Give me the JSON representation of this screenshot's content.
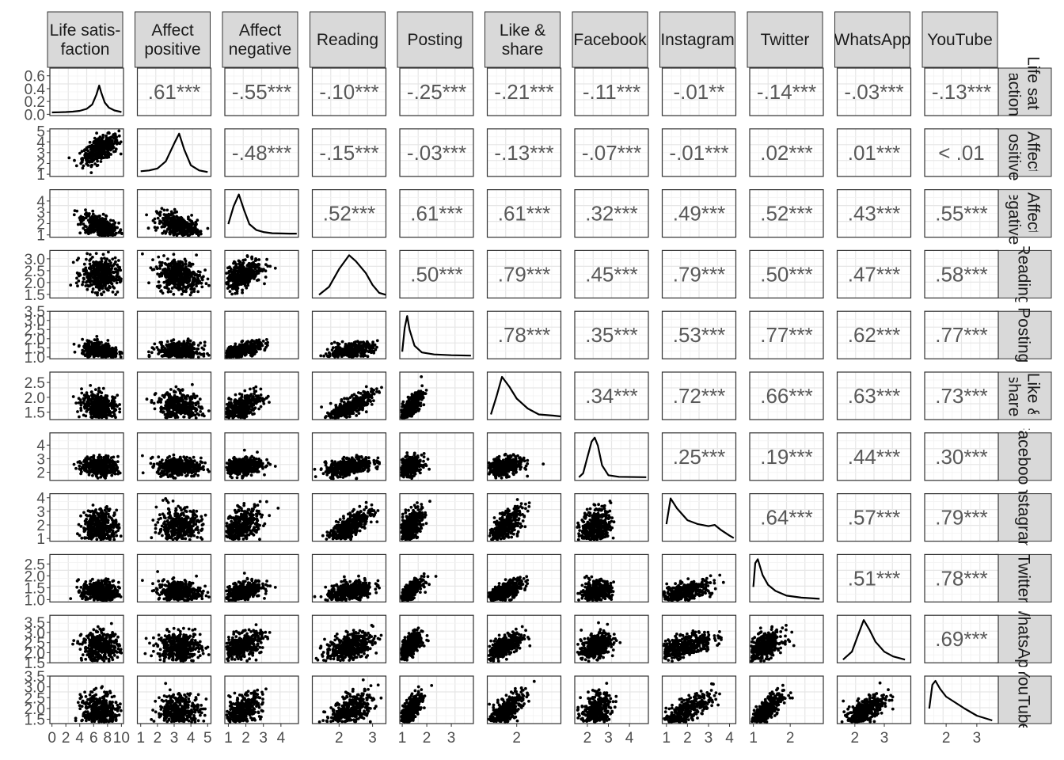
{
  "chart_data": {
    "type": "scatter-matrix",
    "variables": [
      {
        "top": [
          "Life satis-",
          "faction"
        ],
        "right": [
          "Life satis-",
          "faction"
        ]
      },
      {
        "top": [
          "Affect",
          "positive"
        ],
        "right": [
          "Affect",
          "positive"
        ]
      },
      {
        "top": [
          "Affect",
          "negative"
        ],
        "right": [
          "Affect",
          "negative"
        ]
      },
      {
        "top": [
          "Reading"
        ],
        "right": [
          "Reading"
        ]
      },
      {
        "top": [
          "Posting"
        ],
        "right": [
          "Posting"
        ]
      },
      {
        "top": [
          "Like &",
          "share"
        ],
        "right": [
          "Like &",
          "share"
        ]
      },
      {
        "top": [
          "Facebook"
        ],
        "right": [
          "Facebook"
        ]
      },
      {
        "top": [
          "Instagram"
        ],
        "right": [
          "Instagram"
        ]
      },
      {
        "top": [
          "Twitter"
        ],
        "right": [
          "Twitter"
        ]
      },
      {
        "top": [
          "WhatsApp"
        ],
        "right": [
          "WhatsApp"
        ]
      },
      {
        "top": [
          "YouTube"
        ],
        "right": [
          "YouTube"
        ]
      }
    ],
    "x_ranges": [
      [
        -0.3,
        10.3
      ],
      [
        0.8,
        5.2
      ],
      [
        0.8,
        5.0
      ],
      [
        1.2,
        3.4
      ],
      [
        0.9,
        3.9
      ],
      [
        1.2,
        3.2
      ],
      [
        1.4,
        4.9
      ],
      [
        0.8,
        4.3
      ],
      [
        0.9,
        2.9
      ],
      [
        1.4,
        3.9
      ],
      [
        1.3,
        3.7
      ]
    ],
    "y_ranges": [
      [
        -0.02,
        0.72
      ],
      [
        0.8,
        5.2
      ],
      [
        0.8,
        5.0
      ],
      [
        1.35,
        3.35
      ],
      [
        0.9,
        3.5
      ],
      [
        1.25,
        2.85
      ],
      [
        1.4,
        4.9
      ],
      [
        0.8,
        4.3
      ],
      [
        0.9,
        2.9
      ],
      [
        1.5,
        3.85
      ],
      [
        1.3,
        3.5
      ]
    ],
    "x_ticks": [
      [
        0,
        2,
        4,
        6,
        8,
        10
      ],
      [
        1,
        2,
        3,
        4,
        5
      ],
      [
        1,
        2,
        3,
        4
      ],
      [
        2,
        3
      ],
      [
        1,
        2,
        3
      ],
      [
        2
      ],
      [
        2,
        3,
        4
      ],
      [
        1,
        2,
        3,
        4
      ],
      [
        1,
        2
      ],
      [
        2,
        3
      ],
      [
        2,
        3
      ]
    ],
    "x_tick_labels": [
      [
        "0",
        "2",
        "4",
        "6",
        "8",
        "10"
      ],
      [
        "1",
        "2",
        "3",
        "4",
        "5"
      ],
      [
        "1",
        "2",
        "3",
        "4"
      ],
      [
        "2",
        "3"
      ],
      [
        "1",
        "2",
        "3"
      ],
      [
        "2"
      ],
      [
        "2",
        "3",
        "4"
      ],
      [
        "1",
        "2",
        "3",
        "4"
      ],
      [
        "1",
        "2"
      ],
      [
        "2",
        "3"
      ],
      [
        "2",
        "3"
      ]
    ],
    "y_ticks": [
      [
        0.0,
        0.2,
        0.4,
        0.6
      ],
      [
        1,
        2,
        3,
        4,
        5
      ],
      [
        1,
        2,
        3,
        4
      ],
      [
        1.5,
        2.0,
        2.5,
        3.0
      ],
      [
        1.0,
        1.5,
        2.0,
        2.5,
        3.0,
        3.5
      ],
      [
        1.5,
        2.0,
        2.5
      ],
      [
        2,
        3,
        4
      ],
      [
        1,
        2,
        3,
        4
      ],
      [
        1.0,
        1.5,
        2.0,
        2.5
      ],
      [
        1.5,
        2.0,
        2.5,
        3.0,
        3.5
      ],
      [
        1.5,
        2.0,
        2.5,
        3.0,
        3.5
      ]
    ],
    "y_tick_labels": [
      [
        "0.0",
        "0.2",
        "0.4",
        "0.6"
      ],
      [
        "1",
        "2",
        "3",
        "4",
        "5"
      ],
      [
        "1",
        "2",
        "3",
        "4"
      ],
      [
        "1.5",
        "2.0",
        "2.5",
        "3.0"
      ],
      [
        "1.0",
        "1.5",
        "2.0",
        "2.5",
        "3.0",
        "3.5"
      ],
      [
        "1.5",
        "2.0",
        "2.5"
      ],
      [
        "2",
        "3",
        "4"
      ],
      [
        "1",
        "2",
        "3",
        "4"
      ],
      [
        "1.0",
        "1.5",
        "2.0",
        "2.5"
      ],
      [
        "1.5",
        "2.0",
        "2.5",
        "3.0",
        "3.5"
      ],
      [
        "1.5",
        "2.0",
        "2.5",
        "3.0",
        "3.5"
      ]
    ],
    "correlations": [
      [
        "",
        ".61***",
        "-.55***",
        "-.10***",
        "-.25***",
        "-.21***",
        "-.11***",
        "-.01**",
        "-.14***",
        "-.03***",
        "-.13***"
      ],
      [
        "",
        "",
        "-.48***",
        "-.15***",
        "-.03***",
        "-.13***",
        "-.07***",
        "-.01***",
        ".02***",
        ".01***",
        "< .01"
      ],
      [
        "",
        "",
        "",
        ".52***",
        ".61***",
        ".61***",
        ".32***",
        ".49***",
        ".52***",
        ".43***",
        ".55***"
      ],
      [
        "",
        "",
        "",
        "",
        ".50***",
        ".79***",
        ".45***",
        ".79***",
        ".50***",
        ".47***",
        ".58***"
      ],
      [
        "",
        "",
        "",
        "",
        "",
        ".78***",
        ".35***",
        ".53***",
        ".77***",
        ".62***",
        ".77***"
      ],
      [
        "",
        "",
        "",
        "",
        "",
        "",
        ".34***",
        ".72***",
        ".66***",
        ".63***",
        ".73***"
      ],
      [
        "",
        "",
        "",
        "",
        "",
        "",
        "",
        ".25***",
        ".19***",
        ".44***",
        ".30***"
      ],
      [
        "",
        "",
        "",
        "",
        "",
        "",
        "",
        "",
        ".64***",
        ".57***",
        ".79***"
      ],
      [
        "",
        "",
        "",
        "",
        "",
        "",
        "",
        "",
        "",
        ".51***",
        ".78***"
      ],
      [
        "",
        "",
        "",
        "",
        "",
        "",
        "",
        "",
        "",
        "",
        ".69***"
      ],
      [
        "",
        "",
        "",
        "",
        "",
        "",
        "",
        "",
        "",
        "",
        ""
      ]
    ],
    "variable_center": [
      7.0,
      3.3,
      1.7,
      2.3,
      1.3,
      1.65,
      2.4,
      1.8,
      1.3,
      2.3,
      1.8
    ],
    "variable_spread": [
      1.3,
      0.65,
      0.6,
      0.35,
      0.25,
      0.25,
      0.35,
      0.7,
      0.25,
      0.35,
      0.45
    ],
    "density_curves": [
      [
        [
          0,
          0.0
        ],
        [
          1,
          0.005
        ],
        [
          2,
          0.01
        ],
        [
          3,
          0.02
        ],
        [
          4,
          0.04
        ],
        [
          5,
          0.09
        ],
        [
          5.8,
          0.2
        ],
        [
          6.4,
          0.45
        ],
        [
          6.8,
          0.68
        ],
        [
          7.1,
          0.5
        ],
        [
          7.6,
          0.25
        ],
        [
          8.2,
          0.12
        ],
        [
          9,
          0.05
        ],
        [
          10,
          0.01
        ]
      ],
      [
        [
          1,
          0.05
        ],
        [
          1.5,
          0.07
        ],
        [
          2,
          0.12
        ],
        [
          2.5,
          0.3
        ],
        [
          3,
          0.75
        ],
        [
          3.3,
          1.0
        ],
        [
          3.6,
          0.6
        ],
        [
          4,
          0.2
        ],
        [
          4.5,
          0.07
        ],
        [
          5,
          0.03
        ]
      ],
      [
        [
          1,
          0.25
        ],
        [
          1.3,
          0.7
        ],
        [
          1.6,
          1.0
        ],
        [
          1.9,
          0.6
        ],
        [
          2.2,
          0.25
        ],
        [
          2.6,
          0.1
        ],
        [
          3,
          0.05
        ],
        [
          3.5,
          0.02
        ],
        [
          4.5,
          0.01
        ],
        [
          4.9,
          0.01
        ]
      ],
      [
        [
          1.4,
          0.0
        ],
        [
          1.7,
          0.2
        ],
        [
          2.0,
          0.65
        ],
        [
          2.3,
          1.0
        ],
        [
          2.5,
          0.85
        ],
        [
          2.8,
          0.55
        ],
        [
          3.0,
          0.25
        ],
        [
          3.2,
          0.05
        ],
        [
          3.4,
          0.0
        ]
      ],
      [
        [
          1.0,
          0.1
        ],
        [
          1.1,
          0.7
        ],
        [
          1.2,
          1.0
        ],
        [
          1.3,
          0.65
        ],
        [
          1.5,
          0.25
        ],
        [
          1.8,
          0.08
        ],
        [
          2.3,
          0.03
        ],
        [
          3,
          0.01
        ],
        [
          3.8,
          0.0
        ]
      ],
      [
        [
          1.3,
          0.05
        ],
        [
          1.45,
          0.5
        ],
        [
          1.6,
          1.0
        ],
        [
          1.8,
          0.75
        ],
        [
          2.0,
          0.45
        ],
        [
          2.3,
          0.2
        ],
        [
          2.6,
          0.05
        ],
        [
          3.0,
          0.02
        ],
        [
          3.2,
          0.0
        ]
      ],
      [
        [
          1.6,
          0.0
        ],
        [
          1.8,
          0.1
        ],
        [
          2.0,
          0.5
        ],
        [
          2.2,
          0.9
        ],
        [
          2.35,
          1.0
        ],
        [
          2.5,
          0.8
        ],
        [
          2.7,
          0.3
        ],
        [
          3.0,
          0.05
        ],
        [
          3.5,
          0.01
        ],
        [
          4.8,
          0.0
        ]
      ],
      [
        [
          1.0,
          0.35
        ],
        [
          1.2,
          1.0
        ],
        [
          1.5,
          0.75
        ],
        [
          2.0,
          0.45
        ],
        [
          2.5,
          0.35
        ],
        [
          3.0,
          0.3
        ],
        [
          3.3,
          0.33
        ],
        [
          3.6,
          0.2
        ],
        [
          4.0,
          0.06
        ],
        [
          4.2,
          0.0
        ]
      ],
      [
        [
          1.0,
          0.3
        ],
        [
          1.05,
          0.9
        ],
        [
          1.12,
          1.0
        ],
        [
          1.25,
          0.6
        ],
        [
          1.4,
          0.35
        ],
        [
          1.6,
          0.2
        ],
        [
          1.9,
          0.08
        ],
        [
          2.3,
          0.03
        ],
        [
          2.8,
          0.0
        ]
      ],
      [
        [
          1.6,
          0.0
        ],
        [
          1.9,
          0.2
        ],
        [
          2.1,
          0.6
        ],
        [
          2.3,
          1.0
        ],
        [
          2.5,
          0.75
        ],
        [
          2.7,
          0.45
        ],
        [
          3.0,
          0.2
        ],
        [
          3.3,
          0.08
        ],
        [
          3.7,
          0.0
        ]
      ],
      [
        [
          1.45,
          0.3
        ],
        [
          1.55,
          0.9
        ],
        [
          1.65,
          1.0
        ],
        [
          1.8,
          0.8
        ],
        [
          2.0,
          0.6
        ],
        [
          2.3,
          0.45
        ],
        [
          2.6,
          0.3
        ],
        [
          3.0,
          0.12
        ],
        [
          3.5,
          0.0
        ]
      ]
    ]
  }
}
